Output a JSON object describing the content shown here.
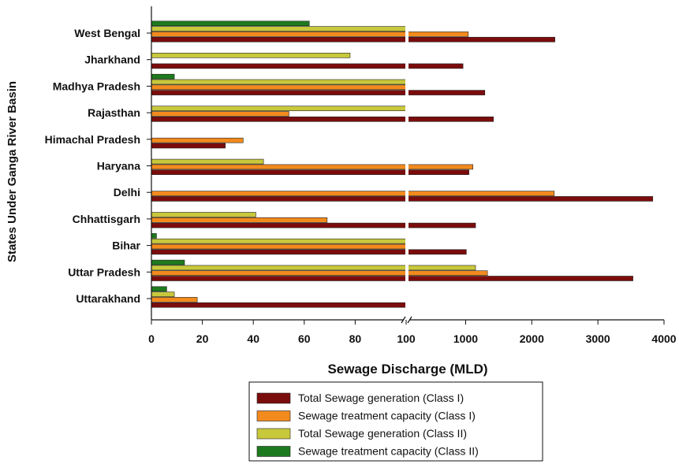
{
  "chart_data": {
    "type": "bar",
    "orientation": "horizontal",
    "title": "",
    "xlabel": "Sewage Discharge (MLD)",
    "ylabel": "States Under Ganga River Basin",
    "categories": [
      "West Bengal",
      "Jharkhand",
      "Madhya Pradesh",
      "Rajasthan",
      "Himachal Pradesh",
      "Haryana",
      "Delhi",
      "Chhattisgarh",
      "Bihar",
      "Uttar Pradesh",
      "Uttarakhand"
    ],
    "x_axis": {
      "broken": true,
      "segment1": {
        "range": [
          0,
          100
        ],
        "ticks": [
          0,
          20,
          40,
          60,
          80,
          100
        ],
        "tick_labels": [
          "0",
          "20",
          "40",
          "60",
          "80",
          "100"
        ]
      },
      "segment2": {
        "range": [
          100,
          4000
        ],
        "ticks": [
          1000,
          2000,
          3000,
          4000
        ],
        "tick_labels": [
          "1000",
          "2000",
          "3000",
          "4000"
        ]
      }
    },
    "series": [
      {
        "name": "Total Sewage generation (Class I)",
        "color": "#7b0c0c",
        "values": [
          2350,
          960,
          1290,
          1420,
          29,
          1050,
          3830,
          1150,
          1010,
          3530,
          120
        ]
      },
      {
        "name": "Sewage treatment capacity (Class I)",
        "color": "#f28a1e",
        "values": [
          1040,
          null,
          120,
          54,
          36,
          1110,
          2340,
          69,
          103,
          1330,
          18
        ]
      },
      {
        "name": "Total Sewage generation (Class II)",
        "color": "#c8c83c",
        "values": [
          125,
          78,
          102,
          104,
          null,
          44,
          null,
          41,
          100,
          1150,
          9
        ]
      },
      {
        "name": "Sewage treatment capacity (Class II)",
        "color": "#1e7a1e",
        "values": [
          62,
          null,
          9,
          null,
          null,
          null,
          null,
          null,
          2,
          13,
          6
        ]
      }
    ],
    "legend_position": "bottom",
    "grid": false
  }
}
